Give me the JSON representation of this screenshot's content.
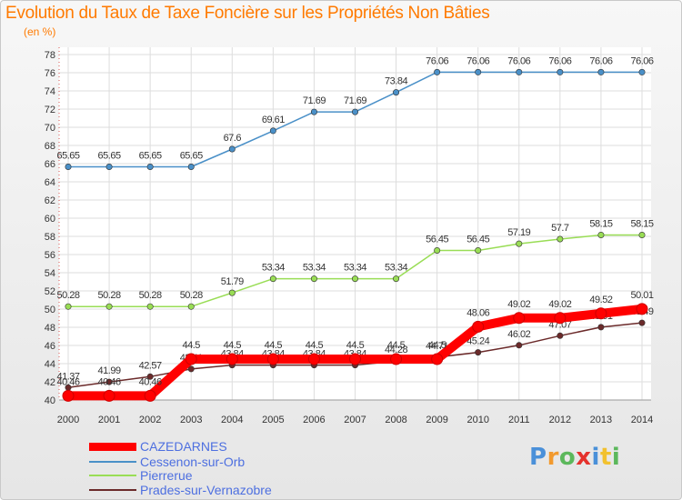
{
  "title": "Evolution du Taux de Taxe Foncière sur les Propriétés Non Bâties",
  "unit_label": "(en %)",
  "logo": {
    "text": "Proxiti",
    "letter_colors": [
      "#4a90d9",
      "#f29a2e",
      "#5cb85c",
      "#e5322d",
      "#4a90d9",
      "#f2c12e",
      "#5cb85c"
    ]
  },
  "chart_data": {
    "type": "line",
    "title": "Evolution du Taux de Taxe Foncière sur les Propriétés Non Bâties",
    "ylabel": "(en %)",
    "xlabel": "",
    "x": [
      "2000",
      "2001",
      "2002",
      "2003",
      "2004",
      "2005",
      "2006",
      "2007",
      "2008",
      "2009",
      "2010",
      "2011",
      "2012",
      "2013",
      "2014"
    ],
    "ylim": [
      40,
      78
    ],
    "yticks": [
      40,
      42,
      44,
      46,
      48,
      50,
      52,
      54,
      56,
      58,
      60,
      62,
      64,
      66,
      68,
      70,
      72,
      74,
      76,
      78
    ],
    "grid": true,
    "legend_position": "bottom-left",
    "series": [
      {
        "name": "CAZEDARNES",
        "color": "#ff0000",
        "values": [
          40.46,
          40.46,
          40.46,
          44.5,
          44.5,
          44.5,
          44.5,
          44.5,
          44.5,
          44.5,
          48.06,
          49.02,
          49.02,
          49.52,
          50.01
        ],
        "labels": [
          "40.46",
          "40.46",
          "40.46",
          "44.5",
          "44.5",
          "44.5",
          "44.5",
          "44.5",
          "44.5",
          "44.5",
          "48.06",
          "49.02",
          "49.02",
          "49.52",
          "50.01"
        ]
      },
      {
        "name": "Cessenon-sur-Orb",
        "color": "#4a90c8",
        "values": [
          65.65,
          65.65,
          65.65,
          65.65,
          67.6,
          69.61,
          71.69,
          71.69,
          73.84,
          76.06,
          76.06,
          76.06,
          76.06,
          76.06,
          76.06
        ],
        "labels": [
          "65.65",
          "65.65",
          "65.65",
          "65.65",
          "67.6",
          "69.61",
          "71.69",
          "71.69",
          "73.84",
          "76.06",
          "76.06",
          "76.06",
          "76.06",
          "76.06",
          "76.06"
        ]
      },
      {
        "name": "Pierrerue",
        "color": "#99dd55",
        "values": [
          50.28,
          50.28,
          50.28,
          50.28,
          51.79,
          53.34,
          53.34,
          53.34,
          53.34,
          56.45,
          56.45,
          57.19,
          57.7,
          58.15,
          58.15
        ],
        "labels": [
          "50.28",
          "50.28",
          "50.28",
          "50.28",
          "51.79",
          "53.34",
          "53.34",
          "53.34",
          "53.34",
          "56.45",
          "56.45",
          "57.19",
          "57.7",
          "58.15",
          "58.15"
        ]
      },
      {
        "name": "Prades-sur-Vernazobre",
        "color": "#6b2a2a",
        "values": [
          41.37,
          41.99,
          42.57,
          43.41,
          43.84,
          43.84,
          43.84,
          43.84,
          44.28,
          44.71,
          45.24,
          46.02,
          47.07,
          48.01,
          48.49
        ],
        "labels": [
          "41.37",
          "41.99",
          "42.57",
          "43.41",
          "43.84",
          "43.84",
          "43.84",
          "43.84",
          "44.28",
          "44.71",
          "45.24",
          "46.02",
          "47.07",
          "48.01",
          "48.49"
        ]
      }
    ]
  }
}
